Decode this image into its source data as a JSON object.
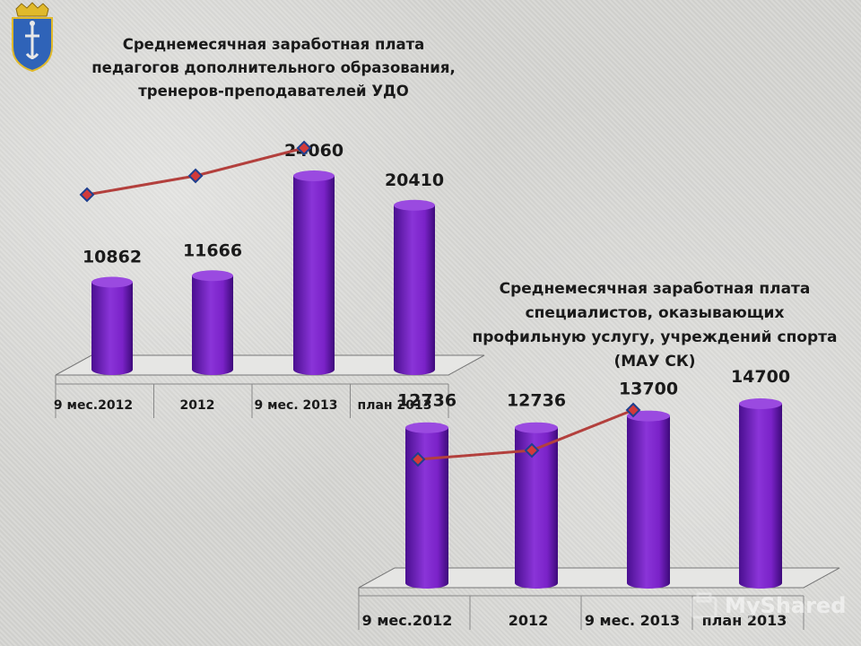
{
  "chart_data": [
    {
      "type": "bar",
      "title_lines": [
        "Среднемесячная заработная плата",
        "педагогов дополнительного образования,",
        "тренеров-преподавателей УДО"
      ],
      "categories": [
        "9 мес.2012",
        "2012",
        "9 мес. 2013",
        "план 2013"
      ],
      "values": [
        10862,
        11666,
        24060,
        20410
      ],
      "line_overlay": true,
      "bar_color": "#7a22c8"
    },
    {
      "type": "bar",
      "title_lines": [
        "Среднемесячная заработная плата",
        "специалистов, оказывающих",
        "профильную услугу, учреждений спорта",
        "(МАУ СК)"
      ],
      "categories": [
        "9 мес.2012",
        "2012",
        "9 мес. 2013",
        "план 2013"
      ],
      "values": [
        12736,
        12736,
        13700,
        14700
      ],
      "line_overlay": true,
      "bar_color": "#7a22c8"
    }
  ],
  "emblem": {
    "icon": "city-coat-of-arms-icon",
    "colors": {
      "shield": "#2f63b8",
      "crown": "#e0b92b"
    }
  },
  "watermark": {
    "text": "MyShared"
  },
  "colors": {
    "line": "#b3403d",
    "marker": "#d23a3a",
    "marker_edge": "#1f3f8f"
  }
}
